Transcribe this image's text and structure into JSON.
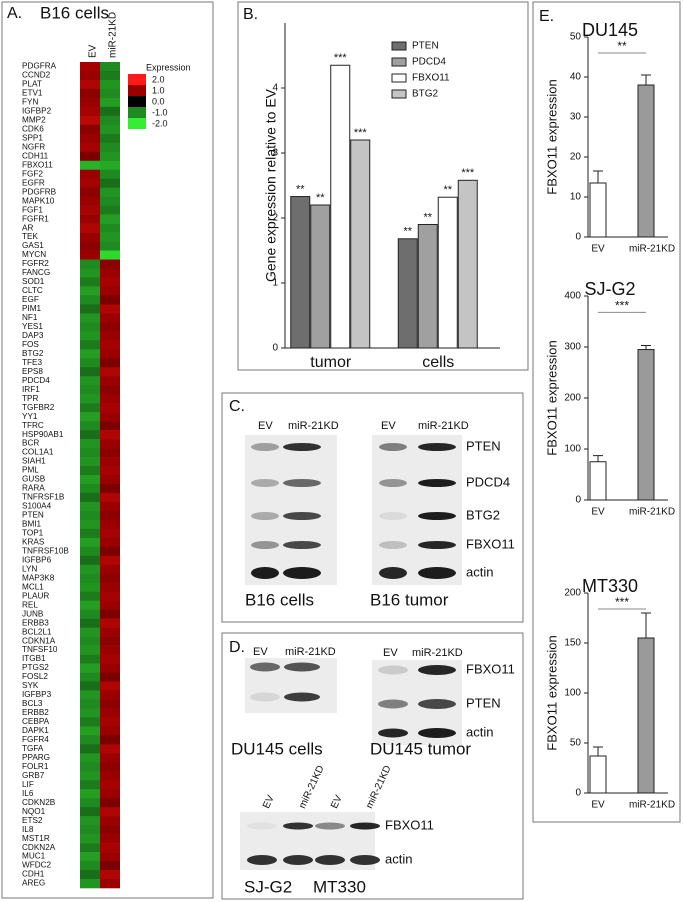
{
  "panel_labels": [
    "A.",
    "B.",
    "C.",
    "D.",
    "E."
  ],
  "heatmap": {
    "title": "B16 cells",
    "columns": [
      "EV",
      "miR-21KD"
    ],
    "genes": [
      "PDGFRA",
      "CCND2",
      "PLAT",
      "ETV1",
      "FYN",
      "IGFBP2",
      "MMP2",
      "CDK6",
      "SPP1",
      "NGFR",
      "CDH11",
      "FBXO11",
      "FGF2",
      "EGFR",
      "PDGFRB",
      "MAPK10",
      "FGF1",
      "FGFR1",
      "AR",
      "TEK",
      "GAS1",
      "MYCN",
      "FGFR2",
      "FANCG",
      "SOD1",
      "CLTC",
      "EGF",
      "PIM1",
      "NF1",
      "YES1",
      "DAP3",
      "FOS",
      "BTG2",
      "TFE3",
      "EPS8",
      "PDCD4",
      "IRF1",
      "TPR",
      "TGFBR2",
      "YY1",
      "TFRC",
      "HSP90AB1",
      "BCR",
      "COL1A1",
      "SIAH1",
      "PML",
      "GUSB",
      "RARA",
      "TNFRSF1B",
      "S100A4",
      "PTEN",
      "BMI1",
      "TOP1",
      "KRAS",
      "TNFRSF10B",
      "IGFBP6",
      "LYN",
      "MAP3K8",
      "MCL1",
      "PLAUR",
      "REL",
      "JUNB",
      "ERBB3",
      "BCL2L1",
      "CDKN1A",
      "TNFSF10",
      "ITGB1",
      "PTGS2",
      "FOSL2",
      "SYK",
      "IGFBP3",
      "BCL3",
      "ERBB2",
      "CEBPA",
      "DAPK1",
      "FGFR4",
      "TGFA",
      "PPARG",
      "FOLR1",
      "GRB7",
      "LIF",
      "IL6",
      "CDKN2B",
      "NQO1",
      "ETS2",
      "IL8",
      "MST1R",
      "CDKN2A",
      "MUC1",
      "WFDC2",
      "CDH1",
      "AREG"
    ],
    "values": [
      [
        1.1,
        1.0,
        1.2,
        0.9,
        1.0,
        1.1,
        1.3,
        0.9,
        1.0,
        1.1,
        0.8,
        -1.4,
        1.0,
        1.1,
        0.9,
        1.0,
        1.1,
        1.0,
        1.2,
        1.0,
        0.9,
        1.0,
        -1.0,
        -1.1,
        -0.9,
        -1.2,
        -1.0,
        -0.8,
        -1.1,
        -1.0,
        -1.1,
        -0.9,
        -1.2,
        -1.0,
        -0.8,
        -1.1,
        -1.0,
        -1.1,
        -0.9,
        -1.2,
        -1.0,
        -0.8,
        -1.1,
        -1.0,
        -1.1,
        -0.9,
        -1.2,
        -1.0,
        -0.8,
        -1.1,
        -1.0,
        -1.1,
        -0.9,
        -1.2,
        -1.0,
        -0.8,
        -1.1,
        -1.0,
        -1.1,
        -0.9,
        -1.2,
        -1.0,
        -0.8,
        -1.1,
        -1.0,
        -1.1,
        -0.9,
        -1.2,
        -1.0,
        -0.8,
        -1.1,
        -1.0,
        -1.1,
        -0.9,
        -1.2,
        -1.0,
        -0.8,
        -1.1,
        -1.0,
        -1.1,
        -0.9,
        -1.2,
        -1.0,
        -0.8,
        -1.1,
        -1.0,
        -1.1,
        -0.9,
        -1.2,
        -1.0,
        -0.8,
        -1.1
      ],
      [
        -1.0,
        -0.9,
        -1.1,
        -1.0,
        -1.2,
        -0.8,
        -1.0,
        -1.1,
        -0.9,
        -1.0,
        -1.1,
        -1.3,
        -1.0,
        -0.8,
        -1.1,
        -1.0,
        -0.9,
        -1.2,
        -1.0,
        -1.1,
        -1.0,
        -1.8,
        0.9,
        1.0,
        1.1,
        1.0,
        0.8,
        1.2,
        1.0,
        0.9,
        1.0,
        1.1,
        1.0,
        0.8,
        1.2,
        1.0,
        0.9,
        1.0,
        1.1,
        1.0,
        0.8,
        1.2,
        1.0,
        0.9,
        1.0,
        1.1,
        1.0,
        0.8,
        1.2,
        1.0,
        0.9,
        1.0,
        1.1,
        1.0,
        0.8,
        1.2,
        1.0,
        0.9,
        1.0,
        1.1,
        1.0,
        0.8,
        1.2,
        1.0,
        0.9,
        1.0,
        1.1,
        1.0,
        0.8,
        1.2,
        1.0,
        0.9,
        1.0,
        1.1,
        1.0,
        0.8,
        1.2,
        1.0,
        0.9,
        1.0,
        1.1,
        1.0,
        0.8,
        1.2,
        1.0,
        0.9,
        1.0,
        1.1,
        1.0,
        0.8,
        1.2,
        1.0
      ]
    ],
    "legend_title": "Expression",
    "scale": [
      {
        "value": 2,
        "label": "2.0",
        "color": "#ff1a1a"
      },
      {
        "value": 1,
        "label": "1.0",
        "color": "#9b0000"
      },
      {
        "value": 0,
        "label": "0.0",
        "color": "#000000"
      },
      {
        "value": -1,
        "label": "-1.0",
        "color": "#1f8a1f"
      },
      {
        "value": -2,
        "label": "-2.0",
        "color": "#33ee33"
      }
    ]
  },
  "chart_data": [
    {
      "type": "bar",
      "y_label": "Gene expression relative to EV",
      "categories": [
        "tumor",
        "cells"
      ],
      "series": [
        {
          "name": "PTEN",
          "color": "#6e6e6e",
          "values": [
            2.33,
            1.68
          ],
          "significance": [
            "**",
            "**"
          ]
        },
        {
          "name": "PDCD4",
          "color": "#a0a0a0",
          "values": [
            2.2,
            1.9
          ],
          "significance": [
            "**",
            "**"
          ]
        },
        {
          "name": "FBXO11",
          "color": "#ffffff",
          "values": [
            4.35,
            2.32
          ],
          "significance": [
            "***",
            "**"
          ]
        },
        {
          "name": "BTG2",
          "color": "#c4c4c4",
          "values": [
            3.2,
            2.58
          ],
          "significance": [
            "***",
            "***"
          ]
        }
      ],
      "ylim": [
        0,
        5
      ],
      "yticks": [
        0,
        1,
        2,
        3,
        4
      ]
    },
    {
      "type": "bar",
      "title": "DU145",
      "y_label": "FBXO11 expression",
      "categories": [
        "EV",
        "miR-21KD"
      ],
      "values": [
        13.5,
        38
      ],
      "errors": [
        3,
        2.5
      ],
      "colors": [
        "#ffffff",
        "#9a9a9a"
      ],
      "significance": "**",
      "ylim": [
        0,
        50
      ],
      "yticks": [
        0,
        10,
        20,
        30,
        40,
        50
      ]
    },
    {
      "type": "bar",
      "title": "SJ-G2",
      "y_label": "FBXO11 expression",
      "categories": [
        "EV",
        "miR-21KD"
      ],
      "values": [
        75,
        295
      ],
      "errors": [
        12,
        8
      ],
      "colors": [
        "#ffffff",
        "#9a9a9a"
      ],
      "significance": "***",
      "ylim": [
        0,
        400
      ],
      "yticks": [
        0,
        100,
        200,
        300,
        400
      ]
    },
    {
      "type": "bar",
      "title": "MT330",
      "y_label": "FBXO11 expression",
      "categories": [
        "EV",
        "miR-21KD"
      ],
      "values": [
        37,
        155
      ],
      "errors": [
        9,
        25
      ],
      "colors": [
        "#ffffff",
        "#9a9a9a"
      ],
      "significance": "***",
      "ylim": [
        0,
        200
      ],
      "yticks": [
        0,
        50,
        100,
        150,
        200
      ]
    }
  ],
  "blot_c": {
    "lanes_left": [
      "EV",
      "miR-21KD"
    ],
    "lanes_right": [
      "EV",
      "miR-21KD"
    ],
    "proteins": [
      "PTEN",
      "PDCD4",
      "BTG2",
      "FBXO11",
      "actin"
    ],
    "captions": [
      "B16 cells",
      "B16 tumor"
    ]
  },
  "blot_d": {
    "lanes_left": [
      "EV",
      "miR-21KD"
    ],
    "lanes_right": [
      "EV",
      "miR-21KD"
    ],
    "proteins": [
      "FBXO11",
      "PTEN",
      "actin"
    ],
    "captions": [
      "DU145 cells",
      "DU145 tumor"
    ],
    "lower_lanes": [
      "EV",
      "miR-21KD",
      "EV",
      "miR-21KD"
    ],
    "lower_proteins": [
      "FBXO11",
      "actin"
    ],
    "lower_captions": [
      "SJ-G2",
      "MT330"
    ]
  }
}
